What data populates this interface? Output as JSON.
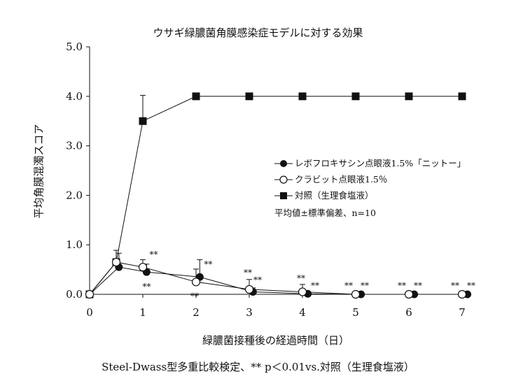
{
  "chart_data": {
    "type": "line",
    "title": "ウサギ緑膿菌角膜感染症モデルに対する効果",
    "xlabel": "緑膿菌接種後の経過時間（日）",
    "ylabel": "平均角膜混濁スコア",
    "xlim": [
      0,
      7
    ],
    "ylim": [
      0,
      5
    ],
    "xticks": [
      "0",
      "1",
      "2",
      "3",
      "4",
      "5",
      "6",
      "7"
    ],
    "yticks": [
      "0.0",
      "1.0",
      "2.0",
      "3.0",
      "4.0",
      "5.0"
    ],
    "series": [
      {
        "name": "レボフロキサシン点眼液1.5%「ニットー」",
        "marker": "filled-circle",
        "color": "#111111",
        "x": [
          0,
          0.55,
          1.07,
          2.07,
          3.07,
          4.1,
          5.1,
          6.1,
          7.1
        ],
        "y": [
          0.0,
          0.55,
          0.45,
          0.35,
          0.05,
          0.01,
          0.0,
          0.0,
          0.0
        ],
        "err": [
          0,
          0.28,
          0.16,
          0.35,
          0.08,
          0.03,
          0,
          0,
          0
        ],
        "sig": [
          "",
          "",
          "**",
          "**",
          "**",
          "**",
          "**",
          "**",
          "**"
        ]
      },
      {
        "name": "クラビット点眼液1.5％",
        "marker": "open-circle",
        "color": "#111111",
        "x": [
          0,
          0.5,
          1.0,
          2.0,
          3.0,
          4.0,
          5.0,
          6.0,
          7.0
        ],
        "y": [
          0.0,
          0.65,
          0.55,
          0.25,
          0.1,
          0.05,
          0.0,
          0.0,
          0.0
        ],
        "err": [
          0,
          0.24,
          0.15,
          0.26,
          0.2,
          0.15,
          0,
          0,
          0
        ],
        "sig": [
          "",
          "",
          "**",
          "**",
          "**",
          "**",
          "**",
          "**",
          "**"
        ]
      },
      {
        "name": "対照（生理食塩液）",
        "marker": "filled-square",
        "color": "#111111",
        "x": [
          0,
          0.5,
          1.0,
          2.0,
          3.0,
          4.0,
          5.0,
          6.0,
          7.0
        ],
        "y": [
          0.0,
          0.65,
          3.5,
          4.0,
          4.0,
          4.0,
          4.0,
          4.0,
          4.0
        ],
        "err": [
          0,
          0.24,
          0.52,
          0,
          0,
          0,
          0,
          0,
          0
        ],
        "sig": [
          "",
          "",
          "",
          "",
          "",
          "",
          "",
          "",
          ""
        ]
      }
    ],
    "legend_note": "平均値±標準偏差、n=10",
    "legend_position": "center-right",
    "footnote": "Steel-Dwass型多重比較検定、** p＜0.01vs.対照（生理食塩液）",
    "grid": false
  }
}
